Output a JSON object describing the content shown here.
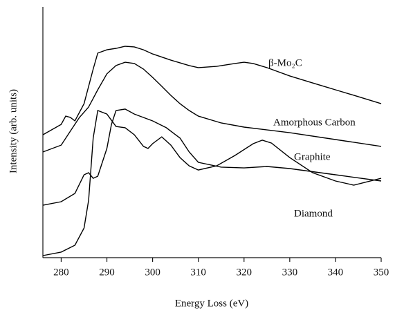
{
  "chart_data": {
    "type": "line",
    "x_label": "Energy Loss (eV)",
    "y_label": "Intensity (arb. units)",
    "xlim": [
      276,
      350
    ],
    "xticks": [
      280,
      290,
      300,
      310,
      320,
      330,
      340,
      350
    ],
    "ylim": [
      0,
      121
    ],
    "series": [
      {
        "name": "β-Mo₂C",
        "color": "#000000",
        "x": [
          276,
          280,
          281,
          282,
          283,
          285,
          287,
          288,
          290,
          292,
          294,
          296,
          298,
          300,
          304,
          308,
          310,
          314,
          318,
          320,
          322,
          325,
          330,
          335,
          340,
          345,
          350
        ],
        "values": [
          59.3,
          64.3,
          68.3,
          67.7,
          66,
          74.3,
          91,
          98.7,
          100.3,
          101,
          102,
          101.7,
          100.3,
          98.3,
          95.3,
          92.7,
          91.7,
          92.3,
          93.7,
          94.3,
          93.7,
          91.7,
          87.7,
          84.3,
          81,
          77.7,
          74.3
        ]
      },
      {
        "name": "Amorphous Carbon",
        "color": "#000000",
        "x": [
          276,
          280,
          282,
          284,
          286,
          288,
          290,
          292,
          294,
          296,
          298,
          300,
          302,
          304,
          306,
          308,
          310,
          315,
          320,
          330,
          340,
          350
        ],
        "values": [
          51,
          54.3,
          61,
          67.7,
          72.7,
          81,
          88.7,
          92.7,
          94.3,
          93.7,
          91,
          87,
          82.7,
          78.3,
          74.3,
          71,
          68.3,
          65,
          63,
          60.3,
          57,
          53.7
        ]
      },
      {
        "name": "Graphite",
        "color": "#000000",
        "x": [
          276,
          280,
          283,
          285,
          286,
          287,
          288,
          290,
          291,
          292,
          294,
          296,
          300,
          303,
          306,
          308,
          310,
          315,
          320,
          325,
          330,
          340,
          350
        ],
        "values": [
          25.3,
          27,
          31,
          40,
          41,
          38.3,
          39.3,
          52.7,
          64.3,
          71,
          71.7,
          69.3,
          66,
          62.7,
          57.7,
          51,
          46,
          43.7,
          43.3,
          44,
          43,
          40,
          37
        ]
      },
      {
        "name": "Diamond",
        "color": "#000000",
        "x": [
          276,
          280,
          283,
          285,
          286,
          287,
          288,
          290,
          292,
          294,
          296,
          298,
          299,
          300,
          302,
          304,
          306,
          308,
          310,
          314,
          318,
          322,
          324,
          326,
          330,
          335,
          340,
          344,
          350
        ],
        "values": [
          1,
          2.7,
          6,
          14.3,
          27.7,
          57.7,
          71,
          69.3,
          63.3,
          62.7,
          59.3,
          53.7,
          52.7,
          55,
          58.3,
          54.3,
          48.3,
          44.3,
          42.3,
          44.3,
          49.3,
          55,
          56.7,
          55.3,
          48.3,
          41,
          37,
          35,
          38.3
        ]
      }
    ]
  }
}
